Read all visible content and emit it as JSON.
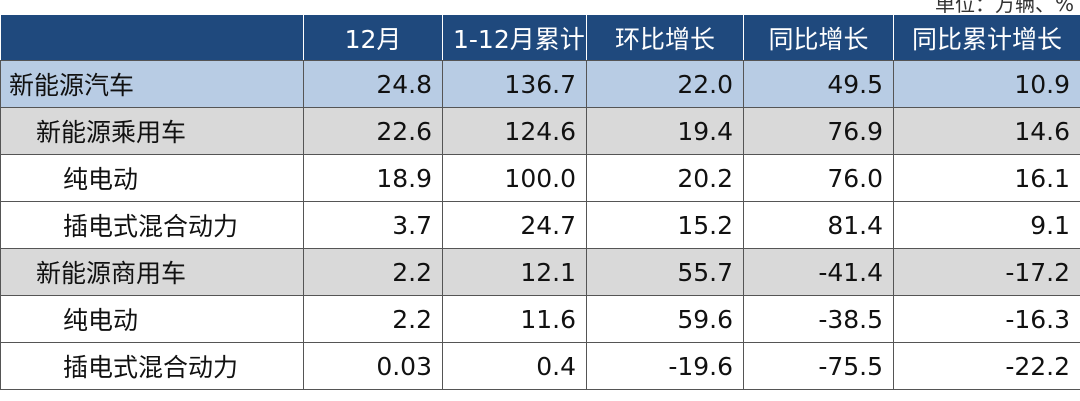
{
  "header": {
    "unit": "单位：万辆、%"
  },
  "table": {
    "columns": [
      "",
      "12月",
      "1-12月累计",
      "环比增长",
      "同比增长",
      "同比累计增长"
    ],
    "rows": [
      [
        "新能源汽车",
        "24.8",
        "136.7",
        "22.0",
        "49.5",
        "10.9"
      ],
      [
        "新能源乘用车",
        "22.6",
        "124.6",
        "19.4",
        "76.9",
        "14.6"
      ],
      [
        "纯电动",
        "18.9",
        "100.0",
        "20.2",
        "76.0",
        "16.1"
      ],
      [
        "插电式混合动力",
        "3.7",
        "24.7",
        "15.2",
        "81.4",
        "9.1"
      ],
      [
        "新能源商用车",
        "2.2",
        "12.1",
        "55.7",
        "-41.4",
        "-17.2"
      ],
      [
        "纯电动",
        "2.2",
        "11.6",
        "59.6",
        "-38.5",
        "-16.3"
      ],
      [
        "插电式混合动力",
        "0.03",
        "0.4",
        "-19.6",
        "-75.5",
        "-22.2"
      ]
    ]
  }
}
